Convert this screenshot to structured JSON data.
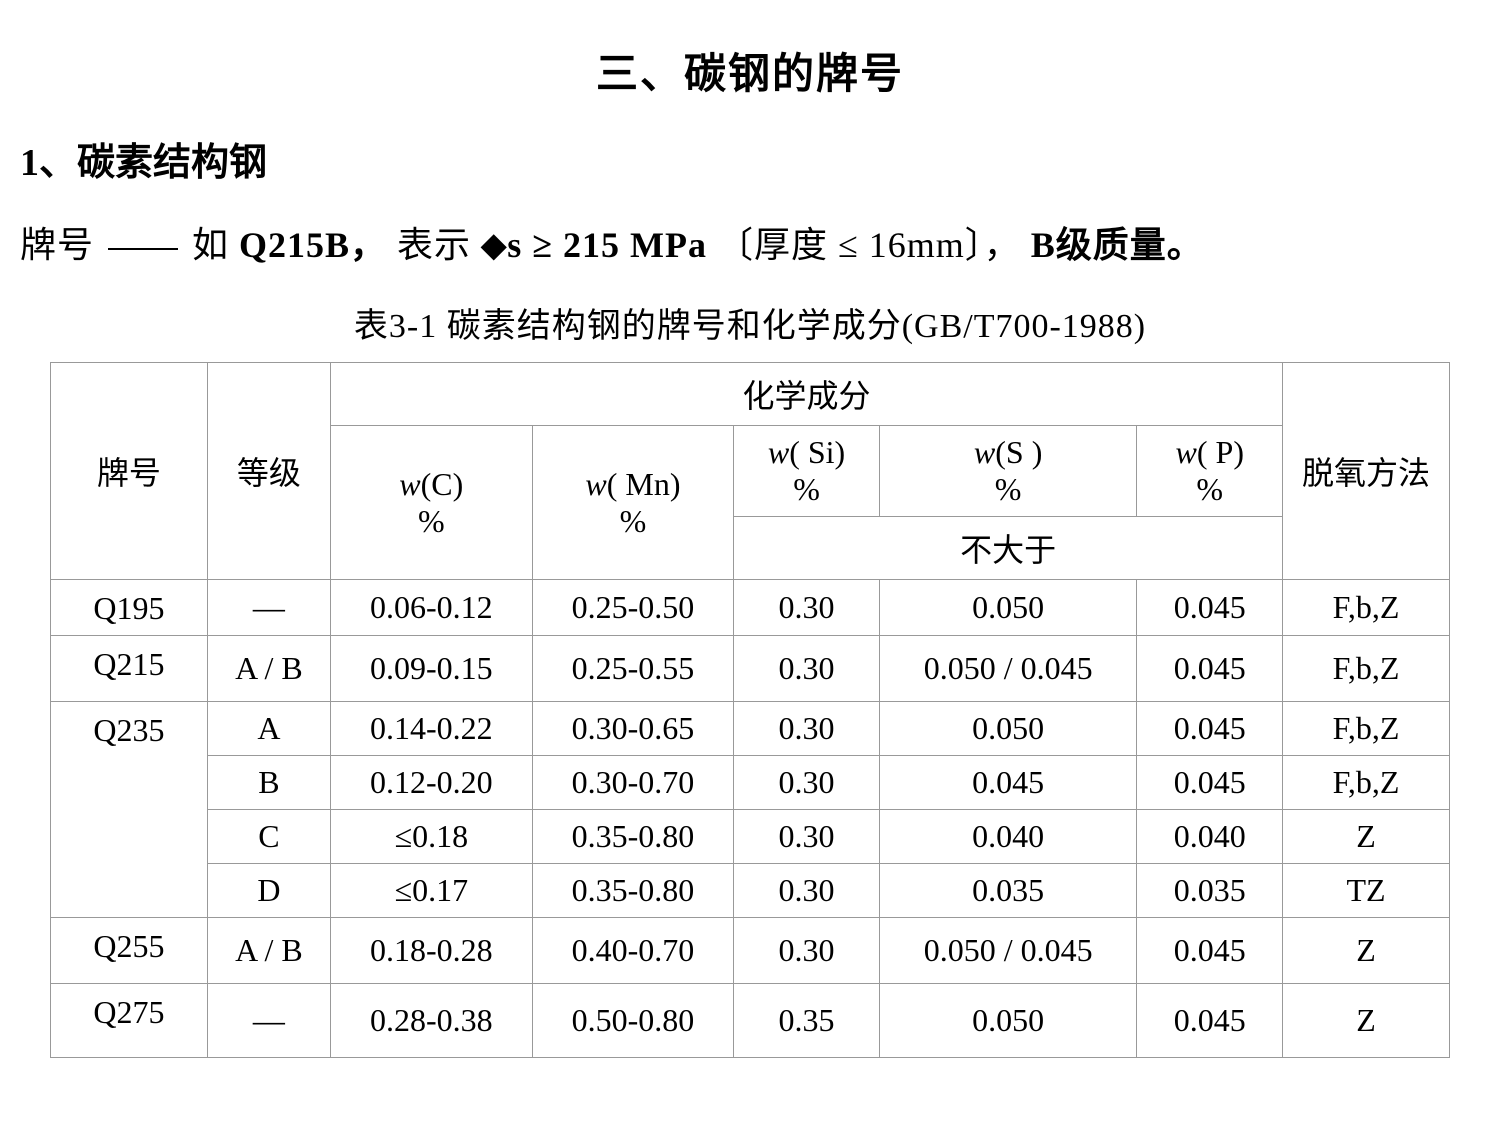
{
  "page": {
    "title": "三、碳钢的牌号",
    "section_label": "1、碳素结构钢",
    "designation_prefix": "牌号",
    "designation_as": "如",
    "designation_example": "Q215B，",
    "designation_means": "表示",
    "designation_sigma": "⬥s ≥ 215 MPa",
    "designation_thickness": "〔厚度 ≤ 16mm〕，",
    "designation_quality": "B级质量。",
    "table_caption": "表3-1   碳素结构钢的牌号和化学成分(GB/T700-1988)"
  },
  "table": {
    "headers": {
      "grade": "牌号",
      "level": "等级",
      "chem_group": "化学成分",
      "wc_prefix": "w",
      "wc_suffix": "(C)",
      "wc_pct": "%",
      "wmn_prefix": "w",
      "wmn_suffix": "( Mn)",
      "wmn_pct": "%",
      "wsi_prefix": "w",
      "wsi_suffix": "( Si)",
      "wsi_pct": "%",
      "ws_prefix": "w",
      "ws_suffix": "(S )",
      "ws_pct": "%",
      "wp_prefix": "w",
      "wp_suffix": "( P)",
      "wp_pct": "%",
      "not_greater": "不大于",
      "deox": "脱氧方法"
    },
    "rows": [
      {
        "grade": "Q195",
        "level": "—",
        "c": "0.06-0.12",
        "mn": "0.25-0.50",
        "si": "0.30",
        "s": "0.050",
        "p": "0.045",
        "deox": "F,b,Z",
        "rowspan": 1,
        "showgrade": true
      },
      {
        "grade": "Q215",
        "level": "A / B",
        "c": "0.09-0.15",
        "mn": "0.25-0.55",
        "si": "0.30",
        "s": "0.050 / 0.045",
        "p": "0.045",
        "deox": "F,b,Z",
        "rowspan": 1,
        "showgrade": true,
        "tall": true
      },
      {
        "grade": "Q235",
        "level": "A",
        "c": "0.14-0.22",
        "mn": "0.30-0.65",
        "si": "0.30",
        "s": "0.050",
        "p": "0.045",
        "deox": "F,b,Z",
        "rowspan": 4,
        "showgrade": true
      },
      {
        "grade": "",
        "level": "B",
        "c": "0.12-0.20",
        "mn": "0.30-0.70",
        "si": "0.30",
        "s": "0.045",
        "p": "0.045",
        "deox": "F,b,Z",
        "rowspan": 0,
        "showgrade": false
      },
      {
        "grade": "",
        "level": "C",
        "c": "≤0.18",
        "mn": "0.35-0.80",
        "si": "0.30",
        "s": "0.040",
        "p": "0.040",
        "deox": "Z",
        "rowspan": 0,
        "showgrade": false
      },
      {
        "grade": "",
        "level": "D",
        "c": "≤0.17",
        "mn": "0.35-0.80",
        "si": "0.30",
        "s": "0.035",
        "p": "0.035",
        "deox": "TZ",
        "rowspan": 0,
        "showgrade": false
      },
      {
        "grade": "Q255",
        "level": "A / B",
        "c": "0.18-0.28",
        "mn": "0.40-0.70",
        "si": "0.30",
        "s": "0.050 / 0.045",
        "p": "0.045",
        "deox": "Z",
        "rowspan": 1,
        "showgrade": true,
        "tall": true
      },
      {
        "grade": "Q275",
        "level": "—",
        "c": "0.28-0.38",
        "mn": "0.50-0.80",
        "si": "0.35",
        "s": "0.050",
        "p": "0.045",
        "deox": "Z",
        "rowspan": 1,
        "showgrade": true,
        "last": true
      }
    ]
  }
}
